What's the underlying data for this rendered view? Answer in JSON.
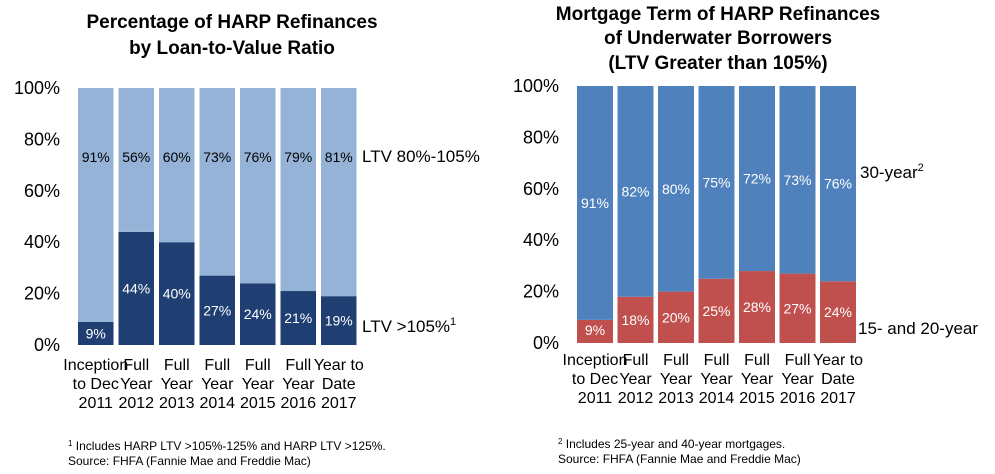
{
  "charts": [
    {
      "title_lines": [
        "Percentage of HARP Refinances",
        "by Loan-to-Value Ratio"
      ],
      "footnote": {
        "marker": "1",
        "text": "Includes HARP LTV >105%-125% and HARP LTV >125%.",
        "source": "Source: FHFA (Fannie Mae and Freddie Mac)"
      }
    },
    {
      "title_lines": [
        "Mortgage Term of HARP Refinances",
        "of Underwater Borrowers",
        "(LTV Greater than 105%)"
      ],
      "footnote": {
        "marker": "2",
        "text": "Includes 25-year and 40-year mortgages.",
        "source": "Source: FHFA (Fannie Mae and Freddie Mac)"
      }
    }
  ],
  "chart_data": [
    {
      "type": "bar",
      "stacked": true,
      "title": "Percentage of HARP Refinances by Loan-to-Value Ratio",
      "categories": [
        "Inception to Dec 2011",
        "Full Year 2012",
        "Full Year 2013",
        "Full Year 2014",
        "Full Year 2015",
        "Full Year 2016",
        "Year to Date 2017"
      ],
      "category_lines": [
        [
          "Inception",
          "to Dec",
          "2011"
        ],
        [
          "Full",
          "Year",
          "2012"
        ],
        [
          "Full",
          "Year",
          "2013"
        ],
        [
          "Full",
          "Year",
          "2014"
        ],
        [
          "Full",
          "Year",
          "2015"
        ],
        [
          "Full",
          "Year",
          "2016"
        ],
        [
          "Year to",
          "Date",
          "2017"
        ]
      ],
      "yticks": [
        "0%",
        "20%",
        "40%",
        "60%",
        "80%",
        "100%"
      ],
      "ylim": [
        0,
        100
      ],
      "series": [
        {
          "name": "LTV >105%",
          "sup": "1",
          "color": "#1f3f73",
          "values": [
            9,
            44,
            40,
            27,
            24,
            21,
            19
          ],
          "labels": [
            "9%",
            "44%",
            "40%",
            "27%",
            "24%",
            "21%",
            "19%"
          ]
        },
        {
          "name": "LTV 80%-105%",
          "sup": "",
          "color": "#95b3d7",
          "values": [
            91,
            56,
            60,
            73,
            76,
            79,
            81
          ],
          "labels": [
            "91%",
            "56%",
            "60%",
            "73%",
            "76%",
            "79%",
            "81%"
          ]
        }
      ],
      "grid": false
    },
    {
      "type": "bar",
      "stacked": true,
      "title": "Mortgage Term of HARP Refinances of Underwater Borrowers (LTV Greater than 105%)",
      "categories": [
        "Inception to Dec 2011",
        "Full Year 2012",
        "Full Year 2013",
        "Full Year 2014",
        "Full Year 2015",
        "Full Year 2016",
        "Year to Date 2017"
      ],
      "category_lines": [
        [
          "Inception",
          "to Dec",
          "2011"
        ],
        [
          "Full",
          "Year",
          "2012"
        ],
        [
          "Full",
          "Year",
          "2013"
        ],
        [
          "Full",
          "Year",
          "2014"
        ],
        [
          "Full",
          "Year",
          "2015"
        ],
        [
          "Full",
          "Year",
          "2016"
        ],
        [
          "Year to",
          "Date",
          "2017"
        ]
      ],
      "yticks": [
        "0%",
        "20%",
        "40%",
        "60%",
        "80%",
        "100%"
      ],
      "ylim": [
        0,
        100
      ],
      "series": [
        {
          "name": "15- and 20-year",
          "sup": "",
          "color": "#c0504d",
          "values": [
            9,
            18,
            20,
            25,
            28,
            27,
            24
          ],
          "labels": [
            "9%",
            "18%",
            "20%",
            "25%",
            "28%",
            "27%",
            "24%"
          ]
        },
        {
          "name": "30-year",
          "sup": "2",
          "color": "#4f81bd",
          "values": [
            91,
            82,
            80,
            75,
            72,
            73,
            76
          ],
          "labels": [
            "91%",
            "82%",
            "80%",
            "75%",
            "72%",
            "73%",
            "76%"
          ]
        }
      ],
      "grid": false
    }
  ]
}
